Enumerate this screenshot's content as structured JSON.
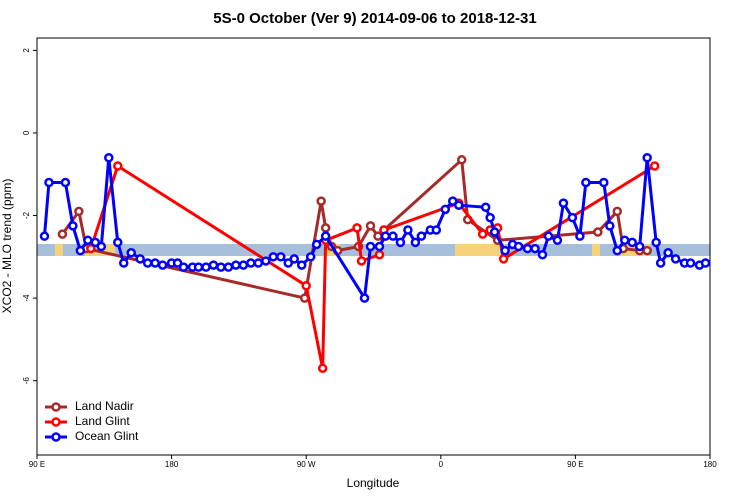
{
  "chart_data": {
    "type": "line",
    "title": "5S-0 October (Ver 9)   2014-09-06 to 2018-12-31",
    "x_label": "Longitude",
    "y_label": "XCO2 - MLO trend (ppm)",
    "xlim": [
      90,
      540
    ],
    "ylim": [
      -7.8,
      2.3
    ],
    "xticks": [
      {
        "value": 90,
        "label": "90 E"
      },
      180,
      {
        "value": 270,
        "label": "90 W"
      },
      {
        "value": 360,
        "label": "0"
      },
      {
        "value": 450,
        "label": "90 E"
      },
      {
        "value": 540,
        "label": "180"
      }
    ],
    "yticks": [
      -6,
      -4,
      -2,
      0,
      2
    ],
    "legend": "bottom-left",
    "series": [
      {
        "name": "Land Nadir",
        "color": "#a52a2a",
        "x": [
          107,
          118,
          123,
          269,
          280,
          283,
          287,
          291,
          305,
          313,
          318,
          322,
          374,
          378,
          398,
          465,
          478,
          482,
          493,
          498
        ],
        "values": [
          -2.45,
          -1.9,
          -2.8,
          -4.0,
          -1.65,
          -2.3,
          -2.75,
          -2.85,
          -2.75,
          -2.25,
          -2.5,
          -2.35,
          -0.65,
          -2.1,
          -2.6,
          -2.4,
          -1.9,
          -2.8,
          -2.85,
          -2.85
        ]
      },
      {
        "name": "Land Glint",
        "color": "#ff0000",
        "x": [
          126,
          144,
          270,
          281,
          283,
          304,
          307,
          319,
          322,
          372,
          388,
          393,
          398,
          402,
          503
        ],
        "values": [
          -2.8,
          -0.8,
          -3.7,
          -5.7,
          -2.6,
          -2.3,
          -3.1,
          -2.95,
          -2.35,
          -1.7,
          -2.45,
          -2.35,
          -2.3,
          -3.05,
          -0.8
        ]
      },
      {
        "name": "Ocean Glint",
        "color": "#0000ff",
        "x": [
          95,
          98,
          109,
          114,
          119,
          124,
          129,
          133,
          138,
          144,
          148,
          153,
          159,
          164,
          169,
          174,
          180,
          184,
          188,
          194,
          198,
          203,
          208,
          213,
          218,
          223,
          228,
          233,
          238,
          243,
          248,
          253,
          258,
          262,
          267,
          273,
          277,
          283,
          309,
          313,
          319,
          323,
          328,
          333,
          338,
          343,
          347,
          353,
          357,
          363,
          368,
          372,
          390,
          393,
          396,
          403,
          408,
          412,
          418,
          423,
          428,
          432,
          438,
          442,
          448,
          453,
          457,
          469,
          473,
          478,
          483,
          488,
          493,
          498,
          504,
          507,
          512,
          517,
          523,
          527,
          533,
          537
        ],
        "values": [
          -2.5,
          -1.2,
          -1.2,
          -2.25,
          -2.85,
          -2.6,
          -2.65,
          -2.75,
          -0.6,
          -2.65,
          -3.15,
          -2.9,
          -3.05,
          -3.15,
          -3.15,
          -3.2,
          -3.15,
          -3.15,
          -3.25,
          -3.25,
          -3.25,
          -3.25,
          -3.2,
          -3.25,
          -3.25,
          -3.2,
          -3.2,
          -3.15,
          -3.15,
          -3.1,
          -3.0,
          -3.0,
          -3.15,
          -3.05,
          -3.2,
          -3.0,
          -2.7,
          -2.5,
          -4.0,
          -2.75,
          -2.75,
          -2.5,
          -2.5,
          -2.65,
          -2.35,
          -2.65,
          -2.5,
          -2.35,
          -2.35,
          -1.85,
          -1.65,
          -1.75,
          -1.8,
          -2.05,
          -2.4,
          -2.85,
          -2.7,
          -2.75,
          -2.8,
          -2.8,
          -2.95,
          -2.5,
          -2.6,
          -1.7,
          -2.05,
          -2.5,
          -1.2,
          -1.2,
          -2.25,
          -2.85,
          -2.6,
          -2.65,
          -2.75,
          -0.6,
          -2.65,
          -3.15,
          -2.9,
          -3.05,
          -3.15,
          -3.15,
          -3.2,
          -3.15
        ]
      }
    ]
  }
}
